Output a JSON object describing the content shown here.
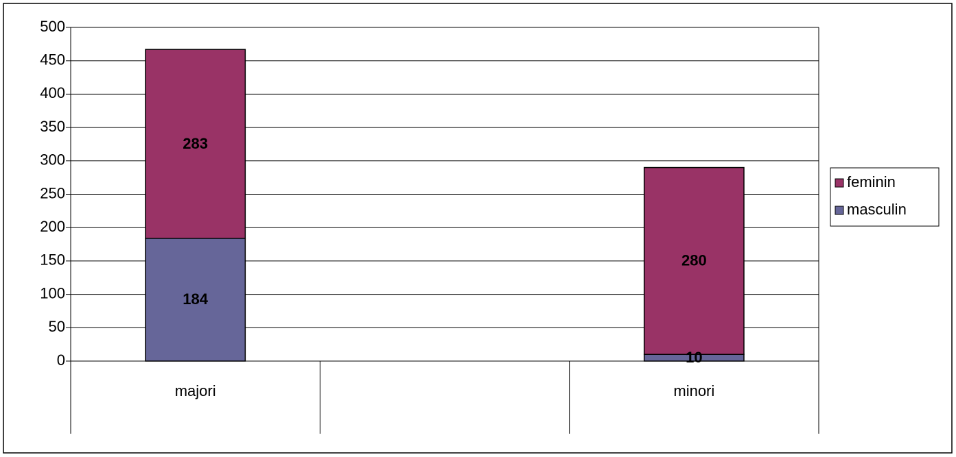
{
  "chart_data": {
    "type": "stacked_bar",
    "categories": [
      "majori",
      null,
      "minori"
    ],
    "series": [
      {
        "name": "masculin",
        "color": "#666699",
        "values": [
          184,
          null,
          10
        ]
      },
      {
        "name": "feminin",
        "color": "#993366",
        "values": [
          283,
          null,
          280
        ]
      }
    ],
    "ylim": [
      0,
      500
    ],
    "yticks": [
      0,
      50,
      100,
      150,
      200,
      250,
      300,
      350,
      400,
      450,
      500
    ],
    "grid": true,
    "legend": "right",
    "data_labels": true
  }
}
